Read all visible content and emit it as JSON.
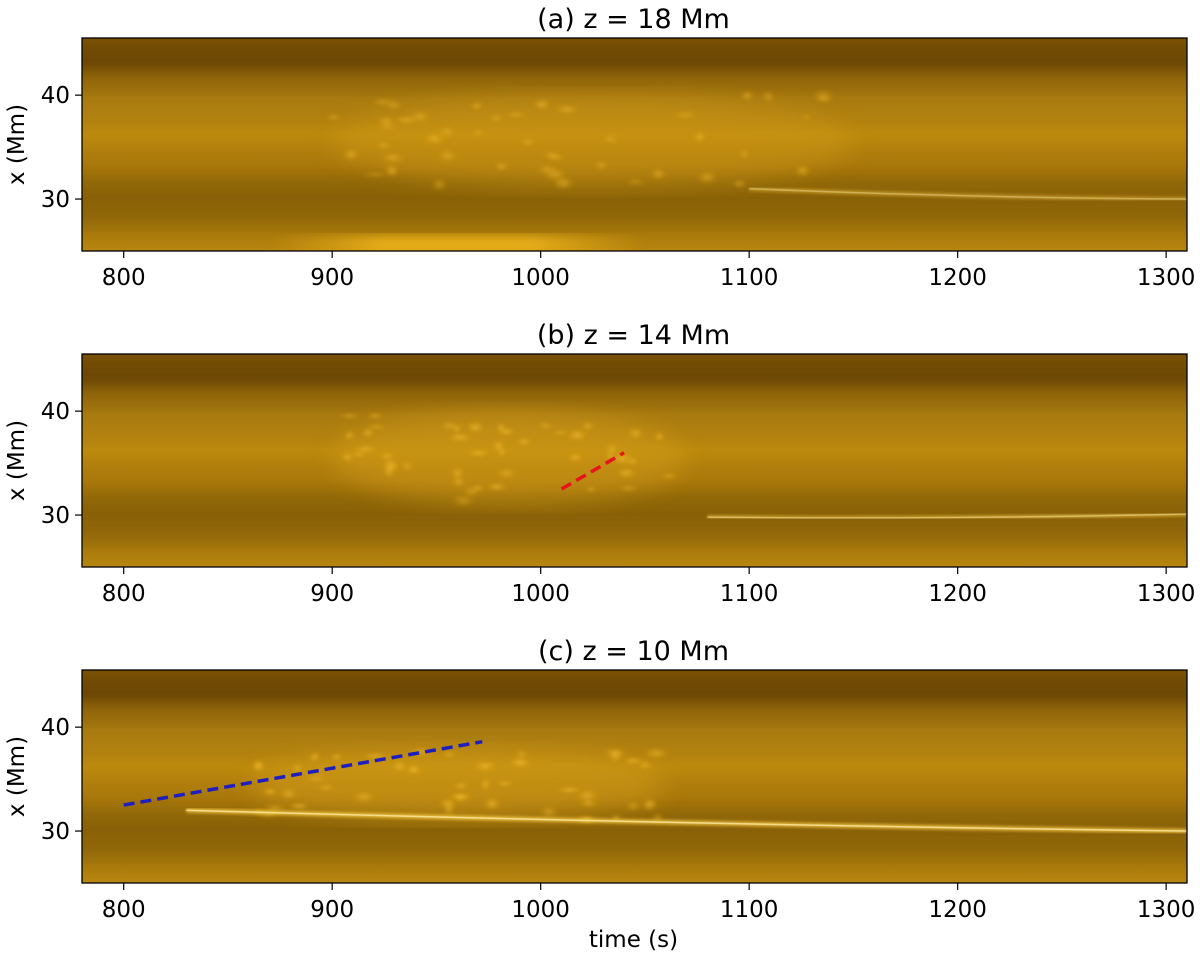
{
  "chart_data": [
    {
      "type": "heatmap",
      "title": "(a) z = 18 Mm",
      "xlabel": "",
      "ylabel": "x (Mm)",
      "xlim": [
        780,
        1310
      ],
      "ylim": [
        25,
        45.5
      ],
      "xticks": [
        800,
        900,
        1000,
        1100,
        1200,
        1300
      ],
      "yticks": [
        30,
        40
      ],
      "colormap": "sdoaia171-like",
      "features": [
        {
          "kind": "bright-band",
          "t": [
            870,
            1050
          ],
          "x": [
            25.2,
            26.5
          ],
          "intensity": 0.75
        },
        {
          "kind": "bright-blob-region",
          "t": [
            900,
            1150
          ],
          "x": [
            31,
            40
          ],
          "intensity": 0.5
        },
        {
          "kind": "bright-streak",
          "t": [
            1100,
            1310
          ],
          "x_start": 31,
          "x_end": 30,
          "intensity": 0.45
        }
      ],
      "overlays": []
    },
    {
      "type": "heatmap",
      "title": "(b) z = 14 Mm",
      "xlabel": "",
      "ylabel": "x (Mm)",
      "xlim": [
        780,
        1310
      ],
      "ylim": [
        25,
        45.5
      ],
      "xticks": [
        800,
        900,
        1000,
        1100,
        1200,
        1300
      ],
      "yticks": [
        30,
        40
      ],
      "colormap": "sdoaia171-like",
      "features": [
        {
          "kind": "bright-blob-region",
          "t": [
            900,
            1070
          ],
          "x": [
            31,
            40
          ],
          "intensity": 0.6
        },
        {
          "kind": "bright-streak",
          "t": [
            1080,
            1310
          ],
          "x_start": 29.8,
          "x_end": 30.1,
          "intensity": 0.55
        }
      ],
      "overlays": [
        {
          "name": "red-dashed-line",
          "color": "#e8141c",
          "t": [
            1010,
            1040
          ],
          "x": [
            32.5,
            36
          ]
        }
      ]
    },
    {
      "type": "heatmap",
      "title": "(c) z = 10 Mm",
      "xlabel": "time (s)",
      "ylabel": "x (Mm)",
      "xlim": [
        780,
        1310
      ],
      "ylim": [
        25,
        45.5
      ],
      "xticks": [
        800,
        900,
        1000,
        1100,
        1200,
        1300
      ],
      "yticks": [
        30,
        40
      ],
      "colormap": "sdoaia171-like",
      "features": [
        {
          "kind": "bright-blob-region",
          "t": [
            860,
            1060
          ],
          "x": [
            31,
            38
          ],
          "intensity": 0.65
        },
        {
          "kind": "bright-streak",
          "t": [
            830,
            1310
          ],
          "x_start": 32,
          "x_end": 30,
          "intensity": 0.85
        }
      ],
      "overlays": [
        {
          "name": "blue-dashed-line",
          "color": "#1f1fbf",
          "t": [
            800,
            972
          ],
          "x": [
            32.5,
            38.6
          ]
        }
      ]
    }
  ]
}
